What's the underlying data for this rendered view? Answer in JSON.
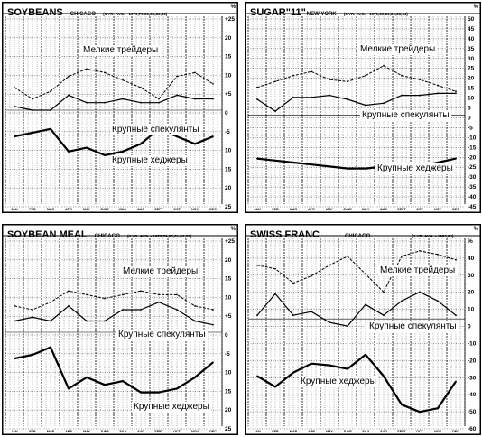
{
  "chart_data": [
    {
      "type": "line",
      "title": "SOYBEANS",
      "location": "CHICAGO",
      "avg_note": "(6 YR. AVG. - 1979,79,80,81,82,83)",
      "unit_symbol": "%",
      "ylim": [
        -25,
        25
      ],
      "y_ticks": [
        "+25",
        "20",
        "15",
        "10",
        "+5",
        "0",
        "-5",
        "10",
        "15",
        "20",
        "25"
      ],
      "categories": [
        "JAN",
        "FEB",
        "MAR",
        "APR",
        "MAY",
        "JUNE",
        "JULY",
        "AUG",
        "SEPT",
        "OCT",
        "NOV",
        "DEC"
      ],
      "series": [
        {
          "name": "Мелкие трейдеры",
          "style": "dashed",
          "values": [
            6,
            3,
            5,
            9,
            11,
            10,
            8,
            6,
            3,
            9,
            10,
            7
          ]
        },
        {
          "name": "Крупные спекулянты",
          "style": "solid",
          "values": [
            1,
            0,
            0,
            4,
            2,
            2,
            3,
            2,
            2,
            4,
            3,
            3
          ]
        },
        {
          "name": "Крупные хеджеры",
          "style": "bold",
          "values": [
            -7,
            -6,
            -5,
            -11,
            -10,
            -12,
            -11,
            -9,
            -5,
            -7,
            -9,
            -7
          ]
        }
      ]
    },
    {
      "type": "line",
      "title": "SUGAR\"11\"",
      "location": "NEW YORK",
      "avg_note": "(6 YR. AVG. - 1979,80,81,82,83,84)",
      "unit_symbol": "%",
      "ylim": [
        -45,
        50
      ],
      "y_ticks": [
        "50",
        "45",
        "40",
        "35",
        "30",
        "25",
        "20",
        "15",
        "10",
        "5",
        "0",
        "-5",
        "-10",
        "-15",
        "-20",
        "-25",
        "-30",
        "-35",
        "-40",
        "-45"
      ],
      "categories": [
        "JAN",
        "FEB",
        "MAR",
        "APR",
        "MAY",
        "JUNE",
        "JULY",
        "AUG",
        "SEPT",
        "OCT",
        "NOV",
        "DEC"
      ],
      "series": [
        {
          "name": "Мелкие трейдеры",
          "style": "dashed",
          "values": [
            14,
            17,
            20,
            22,
            18,
            17,
            20,
            25,
            20,
            18,
            15,
            12
          ]
        },
        {
          "name": "Крупные спекулянты",
          "style": "solid",
          "values": [
            8,
            2,
            9,
            9,
            10,
            8,
            5,
            6,
            10,
            10,
            11,
            11
          ]
        },
        {
          "name": "Крупные хеджеры",
          "style": "bold",
          "values": [
            -22,
            -23,
            -24,
            -25,
            -26,
            -27,
            -27,
            -26,
            -27,
            -26,
            -24,
            -22
          ]
        }
      ]
    },
    {
      "type": "line",
      "title": "SOYBEAN MEAL",
      "location": "CHICAGO",
      "avg_note": "(6 YR. AVG. - 1978,79,80,81,82,83)",
      "unit_symbol": "%",
      "ylim": [
        -25,
        25
      ],
      "y_ticks": [
        "+25",
        "20",
        "15",
        "10",
        "+5",
        "0",
        "-5",
        "10",
        "15",
        "20",
        "25"
      ],
      "categories": [
        "JAN",
        "FEB",
        "MAR",
        "APR",
        "MAY",
        "JUNE",
        "JULY",
        "AUG",
        "SEPT",
        "OCT",
        "NOV",
        "DEC"
      ],
      "series": [
        {
          "name": "Мелкие трейдеры",
          "style": "dashed",
          "values": [
            7,
            6,
            8,
            11,
            10,
            9,
            10,
            11,
            10,
            10,
            7,
            6
          ]
        },
        {
          "name": "Крупные спекулянты",
          "style": "solid",
          "values": [
            3,
            4,
            3,
            7,
            3,
            3,
            6,
            6,
            8,
            6,
            3,
            2
          ]
        },
        {
          "name": "Крупные хеджеры",
          "style": "bold",
          "values": [
            -7,
            -6,
            -4,
            -15,
            -12,
            -14,
            -13,
            -16,
            -16,
            -15,
            -12,
            -8
          ]
        }
      ]
    },
    {
      "type": "line",
      "title": "SWISS FRANC",
      "location": "CHICAGO",
      "avg_note": "(2 YR. AVG. - 1983,84)",
      "unit_symbol": "%",
      "ylim": [
        -60,
        45
      ],
      "y_ticks": [
        "%",
        "40",
        "30",
        "20",
        "10",
        "0",
        "-10",
        "-20",
        "-30",
        "-40",
        "-50",
        "-60"
      ],
      "categories": [
        "JAN",
        "FEB",
        "MAR",
        "APR",
        "MAY",
        "JUNE",
        "JULY",
        "AUG",
        "SEPT",
        "OCT",
        "NOV",
        "DEC"
      ],
      "series": [
        {
          "name": "Мелкие трейдеры",
          "style": "dashed",
          "values": [
            30,
            28,
            20,
            24,
            30,
            35,
            25,
            15,
            35,
            38,
            36,
            33
          ]
        },
        {
          "name": "Крупные спекулянты",
          "style": "solid",
          "values": [
            2,
            14,
            2,
            4,
            -2,
            -4,
            8,
            2,
            10,
            15,
            10,
            2
          ]
        },
        {
          "name": "Крупные хеджеры",
          "style": "bold",
          "values": [
            -32,
            -38,
            -30,
            -25,
            -26,
            -28,
            -20,
            -32,
            -48,
            -52,
            -50,
            -35
          ]
        }
      ]
    }
  ]
}
